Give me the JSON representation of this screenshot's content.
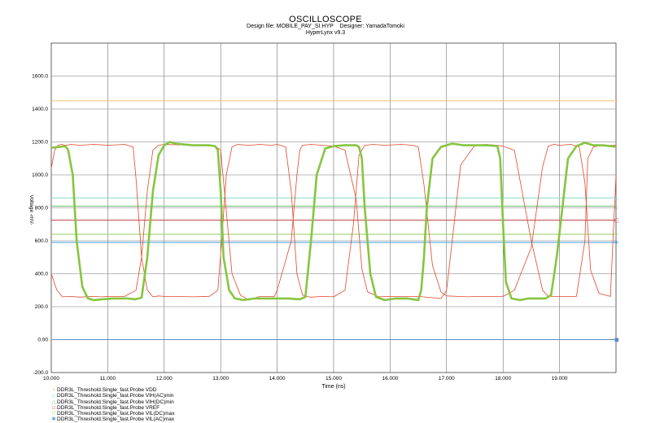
{
  "header": {
    "title": "OSCILLOSCOPE",
    "design_file_label": "Design file:",
    "design_file": "MOBILE_PAY_SI.HYP",
    "designer_label": "Designer:",
    "designer": "YamadaTomoki",
    "version": "HyperLynx v9.3"
  },
  "chart_data": {
    "type": "line",
    "xlabel": "Time  (ns)",
    "ylabel": "Voltage  -mV-",
    "xlim": [
      10,
      20
    ],
    "ylim": [
      -200,
      1800
    ],
    "x_ticks": [
      "10.000",
      "11.000",
      "12.000",
      "13.000",
      "14.000",
      "15.000",
      "16.000",
      "17.000",
      "18.000",
      "19.000"
    ],
    "y_ticks": [
      "-200.0",
      "0.00",
      "200.0",
      "400.0",
      "600.0",
      "800.0",
      "1000.0",
      "1200.0",
      "1400.0",
      "1600.0"
    ],
    "grid": true,
    "legend_placement": "bottom-left",
    "thresholds": [
      {
        "name": "DDR3L_Threshold.Single_fast.Probe VDD",
        "value": 1450,
        "color": "#f5c070",
        "marker": "×"
      },
      {
        "name": "DDR3L_Threshold.Single_fast.Probe VIH(AC)min",
        "value": 860,
        "color": "#8fdcd6",
        "marker": "◇"
      },
      {
        "name": "DDR3L_Threshold.Single_fast.Probe VIH(DC)min",
        "value": 810,
        "color": "#7cc27c",
        "marker": "△"
      },
      {
        "name": "DDR3L_Threshold.Single_fast.Probe VREF",
        "value": 725,
        "color": "#c0504d",
        "marker": "□"
      },
      {
        "name": "DDR3L_Threshold.Single_fast.Probe VIL(DC)max",
        "value": 640,
        "color": "#9bd86a",
        "marker": "▽"
      },
      {
        "name": "DDR3L_Threshold.Single_fast.Probe VIL(AC)max",
        "value": 590,
        "color": "#55aadd",
        "marker": "✱"
      },
      {
        "name": "",
        "value": 0,
        "color": "#5b8ec7",
        "marker": ""
      }
    ],
    "series": [
      {
        "color": "#e2462a",
        "x": [
          10.0,
          10.06,
          10.12,
          10.18,
          10.25,
          10.35,
          10.5,
          10.75,
          11.0,
          11.3,
          11.45,
          11.5,
          11.6,
          11.7,
          11.8,
          11.9,
          12.0,
          12.2,
          12.5,
          12.8,
          12.95,
          13.0,
          13.1,
          13.2,
          13.3,
          13.5,
          13.7,
          13.9,
          14.0,
          14.15,
          14.25,
          14.35,
          14.45,
          14.5,
          14.6,
          14.8,
          15.0,
          15.2,
          15.35,
          15.45,
          15.55,
          15.7,
          15.9,
          16.2,
          16.4,
          16.5,
          16.6,
          16.75,
          16.9,
          17.0,
          17.2,
          17.4,
          17.5,
          17.65,
          17.8,
          18.0,
          18.2,
          18.5,
          18.7,
          18.8,
          18.9,
          19.0,
          19.2,
          19.35,
          19.45,
          19.55,
          19.7,
          19.9,
          20.0
        ],
        "y": [
          1040,
          1150,
          1180,
          1185,
          1180,
          1185,
          1180,
          1185,
          1180,
          1185,
          1170,
          980,
          500,
          300,
          260,
          265,
          262,
          262,
          260,
          262,
          300,
          520,
          1000,
          1170,
          1185,
          1180,
          1185,
          1180,
          1185,
          1170,
          900,
          400,
          270,
          262,
          258,
          262,
          260,
          300,
          700,
          1120,
          1180,
          1185,
          1180,
          1185,
          1180,
          1170,
          940,
          450,
          290,
          265,
          262,
          260,
          262,
          262,
          262,
          262,
          300,
          560,
          1050,
          1175,
          1185,
          1180,
          1185,
          1170,
          950,
          420,
          280,
          262,
          1000
        ]
      },
      {
        "color": "#e2462a",
        "x": [
          10.0,
          10.1,
          10.2,
          10.35,
          10.5,
          10.7,
          10.9,
          11.0,
          11.3,
          11.5,
          11.6,
          11.7,
          11.8,
          11.9,
          12.0,
          12.5,
          12.9,
          13.0,
          13.1,
          13.2,
          13.35,
          13.5,
          13.7,
          13.95,
          14.0,
          14.25,
          14.35,
          14.4,
          14.45,
          14.6,
          14.8,
          15.0,
          15.2,
          15.4,
          15.5,
          15.6,
          15.8,
          16.0,
          16.5,
          16.9,
          17.0,
          17.1,
          17.25,
          17.5,
          17.7,
          17.9,
          18.0,
          18.2,
          18.5,
          18.7,
          18.8,
          18.85,
          19.0,
          19.3,
          19.45,
          19.5,
          19.6,
          19.75,
          20.0
        ],
        "y": [
          400,
          300,
          260,
          262,
          258,
          262,
          260,
          262,
          262,
          300,
          500,
          900,
          1150,
          1180,
          1185,
          1180,
          1175,
          1150,
          780,
          400,
          270,
          240,
          262,
          262,
          300,
          600,
          1000,
          1150,
          1180,
          1185,
          1180,
          1175,
          1150,
          850,
          430,
          290,
          260,
          262,
          262,
          250,
          300,
          600,
          1060,
          1180,
          1185,
          1180,
          1175,
          1150,
          600,
          300,
          262,
          262,
          262,
          262,
          600,
          1100,
          1170,
          1180,
          1180
        ]
      },
      {
        "color": "#86c540",
        "x": [
          10.0,
          10.15,
          10.25,
          10.3,
          10.38,
          10.45,
          10.55,
          10.65,
          10.75,
          10.9,
          11.1,
          11.35,
          11.5,
          11.6,
          11.7,
          11.8,
          11.9,
          12.0,
          12.1,
          12.2,
          12.5,
          12.8,
          12.9,
          12.95,
          13.0,
          13.05,
          13.15,
          13.25,
          13.4,
          13.6,
          13.8,
          14.0,
          14.2,
          14.4,
          14.5,
          14.6,
          14.7,
          14.85,
          15.0,
          15.2,
          15.4,
          15.45,
          15.5,
          15.55,
          15.65,
          15.75,
          15.9,
          16.1,
          16.3,
          16.5,
          16.55,
          16.6,
          16.65,
          16.75,
          16.9,
          17.1,
          17.3,
          17.5,
          17.7,
          17.9,
          17.95,
          18.0,
          18.05,
          18.15,
          18.3,
          18.45,
          18.6,
          18.75,
          18.85,
          18.95,
          19.05,
          19.15,
          19.3,
          19.45,
          19.6,
          19.75,
          19.9,
          20.0
        ],
        "y": [
          1165,
          1170,
          1175,
          1150,
          1000,
          600,
          320,
          250,
          240,
          245,
          250,
          250,
          245,
          255,
          500,
          900,
          1120,
          1180,
          1200,
          1190,
          1180,
          1180,
          1175,
          1150,
          900,
          500,
          300,
          250,
          240,
          250,
          250,
          250,
          250,
          245,
          260,
          600,
          1000,
          1160,
          1175,
          1180,
          1180,
          1170,
          1100,
          800,
          400,
          260,
          240,
          250,
          250,
          240,
          300,
          500,
          800,
          1100,
          1170,
          1190,
          1180,
          1180,
          1180,
          1175,
          1100,
          700,
          350,
          250,
          240,
          250,
          250,
          250,
          270,
          500,
          800,
          1100,
          1175,
          1195,
          1180,
          1180,
          1175,
          1170
        ]
      }
    ]
  }
}
